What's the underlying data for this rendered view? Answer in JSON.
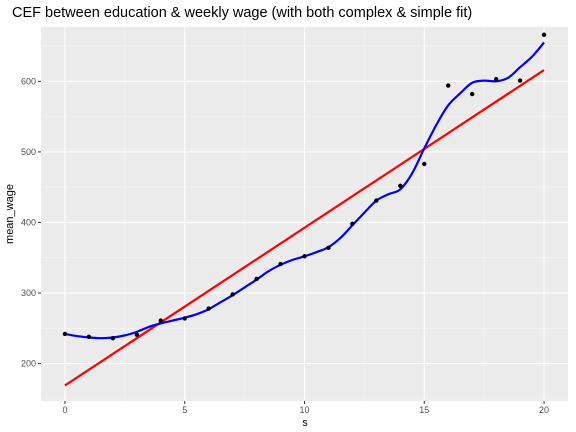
{
  "chart_data": {
    "type": "scatter",
    "title": "CEF between education & weekly wage (with both complex & simple fit)",
    "xlabel": "s",
    "ylabel": "mean_wage",
    "xlim": [
      -1,
      21
    ],
    "ylim": [
      147,
      677
    ],
    "x_ticks": [
      0,
      5,
      10,
      15,
      20
    ],
    "y_ticks": [
      200,
      300,
      400,
      500,
      600
    ],
    "grid": true,
    "legend": "none",
    "points": {
      "x": [
        0,
        1,
        2,
        3,
        4,
        5,
        6,
        7,
        8,
        9,
        10,
        11,
        12,
        13,
        14,
        15,
        16,
        17,
        18,
        19,
        20
      ],
      "y": [
        242,
        238,
        236,
        241,
        261,
        264,
        278,
        298,
        320,
        341,
        352,
        364,
        398,
        431,
        452,
        483,
        594,
        582,
        603,
        601,
        666
      ],
      "color": "#000000"
    },
    "series": [
      {
        "type": "smooth",
        "color": "#0000ff",
        "x": [
          0,
          0.5,
          1,
          1.5,
          2,
          2.5,
          3,
          3.5,
          4,
          4.5,
          5,
          5.5,
          6,
          6.5,
          7,
          7.5,
          8,
          8.5,
          9,
          9.5,
          10,
          10.5,
          11,
          11.5,
          12,
          12.5,
          13,
          13.5,
          14,
          14.5,
          15,
          15.5,
          16,
          16.5,
          17,
          17.5,
          18,
          18.5,
          19,
          19.5,
          20
        ],
        "y": [
          242,
          239,
          237,
          236,
          237,
          240,
          245,
          252,
          257,
          261,
          265,
          270,
          277,
          287,
          297,
          308,
          319,
          331,
          340,
          347,
          352,
          358,
          365,
          378,
          396,
          414,
          431,
          440,
          447,
          470,
          505,
          538,
          566,
          583,
          598,
          601,
          600,
          605,
          620,
          635,
          655
        ]
      },
      {
        "type": "linear",
        "color": "#ff0000",
        "x": [
          0,
          20
        ],
        "y": [
          169,
          616
        ]
      }
    ]
  }
}
